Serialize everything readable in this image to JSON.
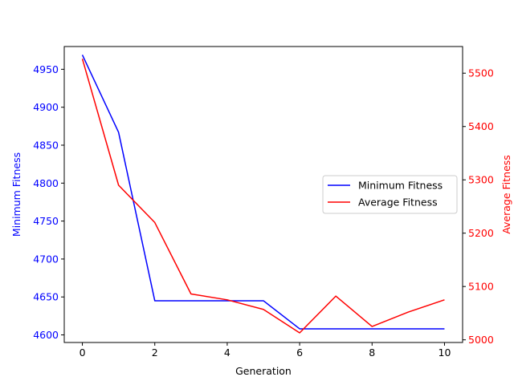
{
  "chart_data": {
    "type": "line",
    "xlabel": "Generation",
    "x_ticks": [
      0,
      2,
      4,
      6,
      8,
      10
    ],
    "xlim": [
      -0.5,
      10.5
    ],
    "x": [
      0,
      1,
      2,
      3,
      4,
      5,
      6,
      7,
      8,
      9,
      10
    ],
    "left_axis": {
      "label": "Minimum Fitness",
      "color": "#0000ff",
      "ylim": [
        4590,
        4980
      ],
      "ticks": [
        4600,
        4650,
        4700,
        4750,
        4800,
        4850,
        4900,
        4950
      ]
    },
    "right_axis": {
      "label": "Average Fitness",
      "color": "#ff0000",
      "ylim": [
        4995,
        5550
      ],
      "ticks": [
        5000,
        5100,
        5200,
        5300,
        5400,
        5500
      ]
    },
    "series": [
      {
        "name": "Minimum Fitness",
        "axis": "left",
        "color": "#0000ff",
        "values": [
          4969,
          4867,
          4645,
          4645,
          4645,
          4645,
          4608,
          4608,
          4608,
          4608,
          4608
        ]
      },
      {
        "name": "Average Fitness",
        "axis": "right",
        "color": "#ff0000",
        "values": [
          5527,
          5290,
          5220,
          5086,
          5075,
          5057,
          5013,
          5082,
          5025,
          5052,
          5075
        ]
      }
    ],
    "legend": {
      "position": "center-right",
      "entries": [
        "Minimum Fitness",
        "Average Fitness"
      ]
    },
    "grid": false
  }
}
